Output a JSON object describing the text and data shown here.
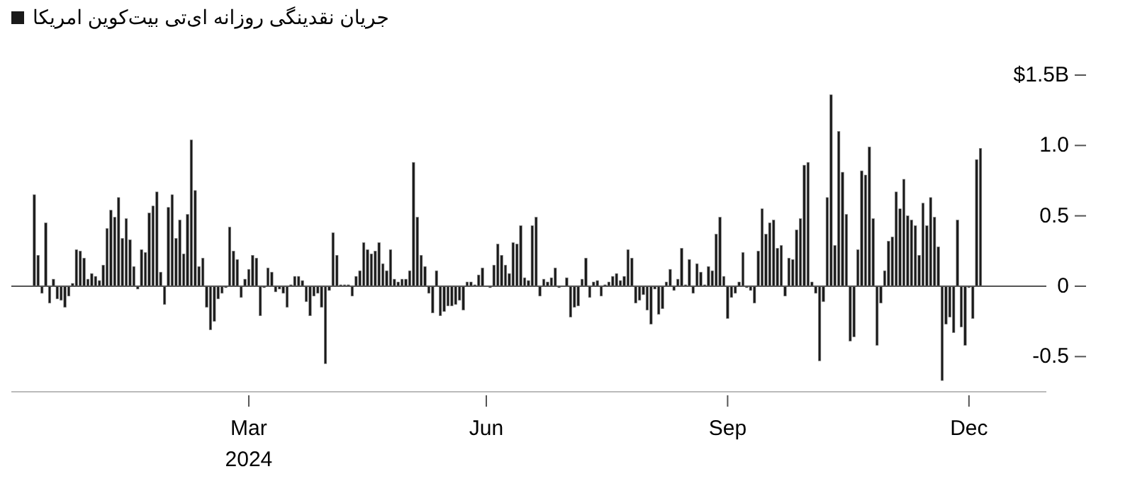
{
  "chart_data": {
    "type": "bar",
    "categories": [
      null,
      null,
      null,
      null,
      null,
      null,
      null,
      null,
      null,
      null,
      null,
      null,
      null,
      null,
      null,
      null,
      null,
      null,
      null,
      null,
      null,
      null,
      null,
      null,
      null,
      null,
      null,
      null,
      null,
      null,
      null,
      null,
      null,
      null,
      null,
      null,
      null,
      null,
      null,
      null,
      null,
      null,
      null,
      null,
      null,
      null,
      null,
      null,
      null,
      null,
      null,
      null,
      null,
      null,
      null,
      null,
      "Mar\n2024",
      null,
      null,
      null,
      null,
      null,
      null,
      null,
      null,
      null,
      null,
      null,
      null,
      null,
      null,
      null,
      null,
      null,
      null,
      null,
      null,
      null,
      null,
      null,
      null,
      null,
      null,
      null,
      null,
      null,
      null,
      null,
      null,
      null,
      null,
      null,
      null,
      null,
      null,
      null,
      null,
      null,
      null,
      null,
      null,
      null,
      null,
      null,
      null,
      null,
      null,
      null,
      null,
      null,
      null,
      null,
      null,
      null,
      null,
      null,
      null,
      null,
      "Jun",
      null,
      null,
      null,
      null,
      null,
      null,
      null,
      null,
      null,
      null,
      null,
      null,
      null,
      null,
      null,
      null,
      null,
      null,
      null,
      null,
      null,
      null,
      null,
      null,
      null,
      null,
      null,
      null,
      null,
      null,
      null,
      null,
      null,
      null,
      null,
      null,
      null,
      null,
      null,
      null,
      null,
      null,
      null,
      null,
      null,
      null,
      null,
      null,
      null,
      null,
      null,
      null,
      null,
      null,
      null,
      null,
      null,
      null,
      null,
      null,
      null,
      null,
      "Sep",
      null,
      null,
      null,
      null,
      null,
      null,
      null,
      null,
      null,
      null,
      null,
      null,
      null,
      null,
      null,
      null,
      null,
      null,
      null,
      null,
      null,
      null,
      null,
      null,
      null,
      null,
      null,
      null,
      null,
      null,
      null,
      null,
      null,
      null,
      null,
      null,
      null,
      null,
      null,
      null,
      null,
      null,
      null,
      null,
      null,
      null,
      null,
      null,
      null,
      null,
      null,
      null,
      null,
      null,
      null,
      null,
      null,
      null,
      null,
      null,
      null,
      null,
      "Dec",
      null,
      null,
      null
    ],
    "series": [
      {
        "name": "جریان نقدینگی روزانه ای‌تی بیت‌کوین امریکا",
        "color": "#1a1a1a",
        "values": [
          0.65,
          0.22,
          -0.05,
          0.45,
          -0.12,
          0.05,
          -0.09,
          -0.1,
          -0.15,
          -0.07,
          0.02,
          0.26,
          0.25,
          0.2,
          0.05,
          0.09,
          0.07,
          0.04,
          0.15,
          0.41,
          0.54,
          0.49,
          0.63,
          0.34,
          0.48,
          0.33,
          0.14,
          -0.02,
          0.26,
          0.24,
          0.52,
          0.57,
          0.67,
          0.1,
          -0.13,
          0.56,
          0.65,
          0.34,
          0.47,
          0.23,
          0.51,
          1.04,
          0.68,
          0.14,
          0.2,
          -0.15,
          -0.31,
          -0.25,
          -0.09,
          -0.05,
          -0.01,
          0.42,
          0.25,
          0.19,
          -0.08,
          0.05,
          0.12,
          0.22,
          0.2,
          -0.21,
          -0.01,
          0.13,
          0.1,
          -0.04,
          -0.02,
          -0.05,
          -0.15,
          0.01,
          0.07,
          0.07,
          0.04,
          -0.11,
          -0.21,
          -0.07,
          -0.05,
          -0.15,
          -0.55,
          -0.03,
          0.38,
          0.22,
          0.01,
          0.01,
          0.01,
          -0.07,
          0.07,
          0.11,
          0.31,
          0.26,
          0.23,
          0.25,
          0.31,
          0.16,
          0.11,
          0.26,
          0.05,
          0.03,
          0.05,
          0.05,
          0.11,
          0.88,
          0.49,
          0.22,
          0.14,
          -0.05,
          -0.19,
          0.11,
          -0.21,
          -0.18,
          -0.14,
          -0.14,
          -0.13,
          -0.1,
          -0.17,
          0.03,
          0.03,
          0.01,
          0.08,
          0.13,
          0,
          -0.01,
          0.15,
          0.3,
          0.22,
          0.15,
          0.09,
          0.31,
          0.3,
          0.43,
          0.06,
          0.04,
          0.43,
          0.49,
          -0.07,
          0.05,
          0.03,
          0.06,
          0.13,
          -0.01,
          0,
          0.06,
          -0.22,
          -0.15,
          -0.14,
          0.05,
          0.2,
          -0.08,
          0.03,
          0.04,
          -0.07,
          0.01,
          0.03,
          0.07,
          0.09,
          0.04,
          0.07,
          0.26,
          0.2,
          -0.12,
          -0.1,
          -0.06,
          -0.17,
          -0.27,
          -0.02,
          -0.2,
          -0.16,
          0.03,
          0.12,
          -0.03,
          0.05,
          0.27,
          0.01,
          0.19,
          -0.05,
          0.16,
          0.1,
          0.01,
          0.14,
          0.11,
          0.37,
          0.49,
          0.07,
          -0.23,
          -0.08,
          -0.05,
          0.03,
          0.24,
          -0.01,
          -0.03,
          -0.12,
          0.25,
          0.55,
          0.37,
          0.45,
          0.47,
          0.27,
          0.29,
          -0.07,
          0.2,
          0.19,
          0.4,
          0.48,
          0.86,
          0.88,
          0.03,
          -0.05,
          -0.53,
          -0.11,
          0.63,
          1.36,
          0.29,
          1.1,
          0.81,
          0.51,
          -0.39,
          -0.36,
          0.26,
          0.82,
          0.79,
          0.99,
          0.48,
          -0.42,
          -0.12,
          0.11,
          0.32,
          0.35,
          0.67,
          0.55,
          0.76,
          0.5,
          0.47,
          0.43,
          0.22,
          0.59,
          0.43,
          0.63,
          0.49,
          0.28,
          -0.67,
          -0.27,
          -0.22,
          -0.33,
          0.47,
          -0.29,
          -0.42,
          -0.01,
          -0.23,
          0.9,
          0.98
        ]
      }
    ],
    "ylim": [
      -0.75,
      1.5
    ],
    "yticks": [
      -0.5,
      0,
      0.5,
      {
        "value": 1,
        "label": "1.0"
      },
      {
        "value": 1.5,
        "label": "$1.5B"
      }
    ],
    "legend": "top left"
  }
}
